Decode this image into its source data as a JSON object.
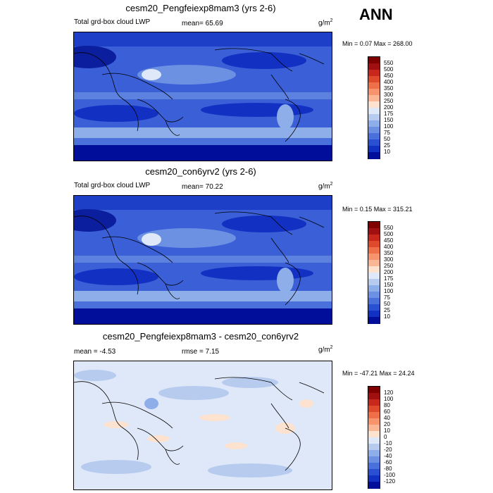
{
  "season_label": "ANN",
  "panels": [
    {
      "title": "cesm20_Pengfeiexp8mam3 (yrs 2-6)",
      "left_label": "Total grd-box cloud LWP",
      "mid_label": "mean=  65.69",
      "unit": "g/m",
      "unit_exp": "2",
      "minmax": "Min =   0.07 Max = 268.00",
      "levels": [
        "550",
        "500",
        "450",
        "400",
        "350",
        "300",
        "250",
        "200",
        "175",
        "150",
        "100",
        "75",
        "50",
        "25",
        "10"
      ],
      "colors": [
        "#7f0000",
        "#a01010",
        "#c8281c",
        "#e04a2c",
        "#ef6f48",
        "#f7946e",
        "#fbb696",
        "#fde3cf",
        "#dfe8f8",
        "#b7cbef",
        "#8eaee9",
        "#6c90e2",
        "#4a70db",
        "#2a50d2",
        "#1230c2",
        "#000e9a"
      ]
    },
    {
      "title": "cesm20_con6yrv2 (yrs 2-6)",
      "left_label": "Total grd-box cloud LWP",
      "mid_label": "mean=  70.22",
      "unit": "g/m",
      "unit_exp": "2",
      "minmax": "Min =   0.15 Max = 315.21",
      "levels": [
        "550",
        "500",
        "450",
        "400",
        "350",
        "300",
        "250",
        "200",
        "175",
        "150",
        "100",
        "75",
        "50",
        "25",
        "10"
      ],
      "colors": [
        "#7f0000",
        "#a01010",
        "#c8281c",
        "#e04a2c",
        "#ef6f48",
        "#f7946e",
        "#fbb696",
        "#fde3cf",
        "#dfe8f8",
        "#b7cbef",
        "#8eaee9",
        "#6c90e2",
        "#4a70db",
        "#2a50d2",
        "#1230c2",
        "#000e9a"
      ]
    },
    {
      "title": "cesm20_Pengfeiexp8mam3 - cesm20_con6yrv2",
      "left_label": "mean =  -4.53",
      "mid_label": "rmse =   7.15",
      "unit": "g/m",
      "unit_exp": "2",
      "minmax": "Min = -47.21 Max =  24.24",
      "levels": [
        "120",
        "100",
        "80",
        "60",
        "40",
        "20",
        "10",
        "0",
        "-10",
        "-20",
        "-40",
        "-60",
        "-80",
        "-100",
        "-120"
      ],
      "colors": [
        "#7f0000",
        "#a01010",
        "#c8281c",
        "#e04a2c",
        "#ef6f48",
        "#f7946e",
        "#fbb696",
        "#fde3cf",
        "#dfe8f8",
        "#b7cbef",
        "#8eaee9",
        "#6c90e2",
        "#4a70db",
        "#2a50d2",
        "#1230c2",
        "#000e9a"
      ]
    }
  ]
}
